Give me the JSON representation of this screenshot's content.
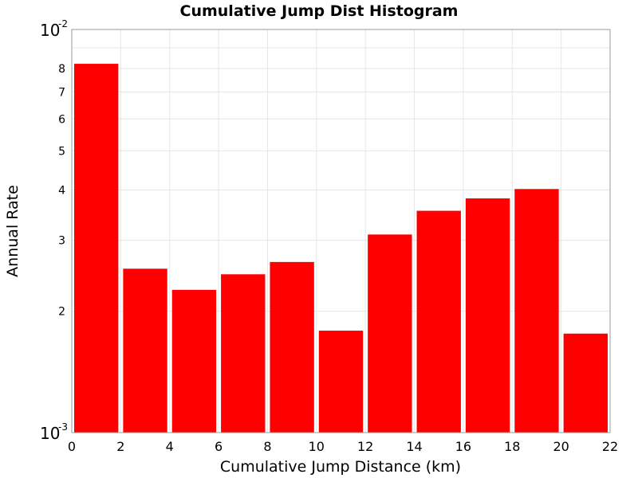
{
  "chart_data": {
    "type": "bar",
    "title": "Cumulative Jump Dist Histogram",
    "xlabel": "Cumulative Jump Distance (km)",
    "ylabel": "Annual Rate",
    "xlim": [
      0,
      22
    ],
    "ylim": [
      0.001,
      0.01
    ],
    "yscale": "log",
    "grid": true,
    "bar_color": "#ff0000",
    "x_ticks": [
      "0",
      "2",
      "4",
      "6",
      "8",
      "10",
      "12",
      "14",
      "16",
      "18",
      "20",
      "22"
    ],
    "y_minor_ticks": [
      {
        "value": 0.002,
        "label": "2"
      },
      {
        "value": 0.003,
        "label": "3"
      },
      {
        "value": 0.004,
        "label": "4"
      },
      {
        "value": 0.005,
        "label": "5"
      },
      {
        "value": 0.006,
        "label": "6"
      },
      {
        "value": 0.007,
        "label": "7"
      },
      {
        "value": 0.008,
        "label": "8"
      }
    ],
    "y_major_ticks": [
      {
        "value": 0.001,
        "base": "10",
        "exp": "-3"
      },
      {
        "value": 0.01,
        "base": "10",
        "exp": "-2"
      }
    ],
    "bins": [
      {
        "x0": 0,
        "x1": 2,
        "value": 0.00822
      },
      {
        "x0": 2,
        "x1": 4,
        "value": 0.00255
      },
      {
        "x0": 4,
        "x1": 6,
        "value": 0.00226
      },
      {
        "x0": 6,
        "x1": 8,
        "value": 0.00247
      },
      {
        "x0": 8,
        "x1": 10,
        "value": 0.00265
      },
      {
        "x0": 10,
        "x1": 12,
        "value": 0.00179
      },
      {
        "x0": 12,
        "x1": 14,
        "value": 0.0031
      },
      {
        "x0": 14,
        "x1": 16,
        "value": 0.00355
      },
      {
        "x0": 16,
        "x1": 18,
        "value": 0.00381
      },
      {
        "x0": 18,
        "x1": 20,
        "value": 0.00402
      },
      {
        "x0": 20,
        "x1": 22,
        "value": 0.00176
      }
    ]
  }
}
